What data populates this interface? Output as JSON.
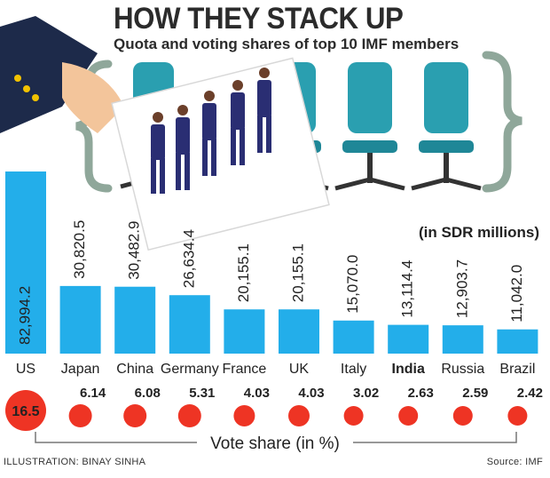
{
  "header": {
    "title": "HOW THEY STACK UP",
    "subtitle": "Quota and voting shares of top 10 IMF members"
  },
  "unit_note": "(in SDR millions)",
  "vote_axis_label": "Vote share (in %)",
  "footer": {
    "credit": "ILLUSTRATION: BINAY SINHA",
    "source": "Source: IMF"
  },
  "colors": {
    "bar": "#23aeea",
    "dot": "#ee3424",
    "chair": "#2a9fb0",
    "bracket": "#8fa79a"
  },
  "chart_data": [
    {
      "type": "bar",
      "title": "Quota (in SDR millions)",
      "categories": [
        "US",
        "Japan",
        "China",
        "Germany",
        "France",
        "UK",
        "Italy",
        "India",
        "Russia",
        "Brazil"
      ],
      "values": [
        82994.2,
        30820.5,
        30482.9,
        26634.4,
        20155.1,
        20155.1,
        15070.0,
        13114.4,
        12903.7,
        11042.0
      ],
      "value_labels": [
        "82,994.2",
        "30,820.5",
        "30,482.9",
        "26,634.4",
        "20,155.1",
        "20,155.1",
        "15,070.0",
        "13,114.4",
        "12,903.7",
        "11,042.0"
      ],
      "ylabel": "in SDR millions",
      "ylim": [
        0,
        90000
      ]
    },
    {
      "type": "scatter",
      "title": "Vote share (in %)",
      "categories": [
        "US",
        "Japan",
        "China",
        "Germany",
        "France",
        "UK",
        "Italy",
        "India",
        "Russia",
        "Brazil"
      ],
      "values": [
        16.5,
        6.14,
        6.08,
        5.31,
        4.03,
        4.03,
        3.02,
        2.63,
        2.59,
        2.42
      ],
      "value_labels": [
        "16.5",
        "6.14",
        "6.08",
        "5.31",
        "4.03",
        "4.03",
        "3.02",
        "2.63",
        "2.59",
        "2.42"
      ]
    }
  ]
}
